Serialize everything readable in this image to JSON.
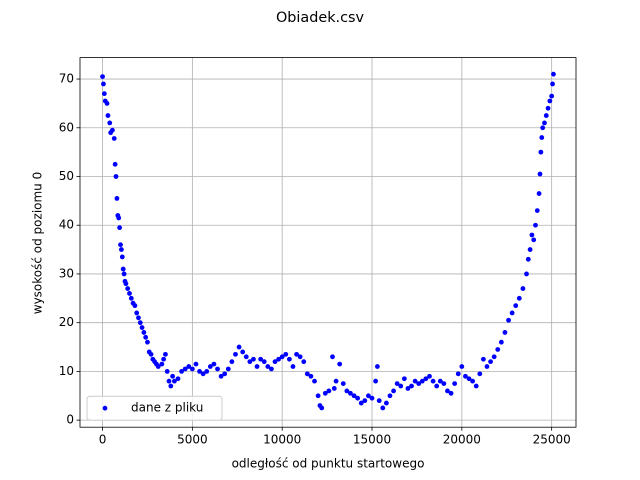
{
  "chart_data": {
    "type": "scatter",
    "title": "Obiadek.csv",
    "xlabel": "odległość od punktu startowego",
    "ylabel": "wysokość od poziomu 0",
    "xlim": [
      -1255,
      26355
    ],
    "ylim": [
      -1.45,
      74.4
    ],
    "xticks": [
      0,
      5000,
      10000,
      15000,
      20000,
      25000
    ],
    "yticks": [
      0,
      10,
      20,
      30,
      40,
      50,
      60,
      70
    ],
    "grid": true,
    "legend": "lower left",
    "series": [
      {
        "name": "dane z pliku",
        "color": "#0000ff",
        "x": [
          0,
          50,
          100,
          150,
          250,
          300,
          400,
          450,
          550,
          650,
          700,
          750,
          800,
          850,
          900,
          950,
          1000,
          1050,
          1100,
          1150,
          1200,
          1250,
          1300,
          1400,
          1500,
          1600,
          1700,
          1800,
          1900,
          2000,
          2100,
          2200,
          2300,
          2400,
          2500,
          2600,
          2700,
          2800,
          2900,
          3000,
          3100,
          3300,
          3400,
          3500,
          3600,
          3700,
          3800,
          3900,
          4000,
          4200,
          4400,
          4600,
          4800,
          5000,
          5200,
          5400,
          5600,
          5800,
          6000,
          6200,
          6400,
          6600,
          6800,
          7000,
          7200,
          7400,
          7600,
          7800,
          8000,
          8200,
          8400,
          8600,
          8800,
          9000,
          9200,
          9400,
          9600,
          9800,
          10000,
          10200,
          10400,
          10600,
          10800,
          11000,
          11200,
          11400,
          11600,
          11800,
          12000,
          12100,
          12200,
          12400,
          12600,
          12800,
          12900,
          13000,
          13200,
          13400,
          13600,
          13800,
          14000,
          14200,
          14400,
          14600,
          14800,
          15000,
          15200,
          15300,
          15400,
          15600,
          15800,
          16000,
          16200,
          16400,
          16600,
          16800,
          17000,
          17200,
          17400,
          17600,
          17800,
          18000,
          18200,
          18400,
          18600,
          18800,
          19000,
          19200,
          19400,
          19600,
          19800,
          20000,
          20200,
          20400,
          20600,
          20800,
          21000,
          21200,
          21400,
          21600,
          21800,
          22000,
          22200,
          22400,
          22600,
          22800,
          23000,
          23200,
          23400,
          23600,
          23700,
          23800,
          23900,
          24000,
          24100,
          24200,
          24300,
          24350,
          24400,
          24450,
          24500,
          24600,
          24700,
          24800,
          24900,
          25000,
          25050,
          25100
        ],
        "values": [
          70.5,
          69,
          67,
          65.5,
          65,
          62.5,
          61,
          59,
          59.5,
          57.8,
          52.5,
          50,
          45.5,
          42,
          41.5,
          39.5,
          36,
          35,
          33.5,
          31,
          30,
          28.5,
          28,
          27,
          26,
          25,
          24,
          23.5,
          22,
          21,
          20,
          19,
          18,
          17,
          16,
          14,
          13.5,
          12.5,
          12,
          11.5,
          11,
          11.5,
          12.5,
          13.5,
          10,
          8,
          7,
          9,
          8,
          8.5,
          10,
          10.5,
          11,
          10.5,
          11.5,
          10,
          9.5,
          10,
          11,
          11.5,
          10.5,
          9,
          9.5,
          10.5,
          12,
          13.5,
          15,
          14,
          13,
          12,
          12.5,
          11,
          12.5,
          12,
          11,
          10.5,
          12,
          12.5,
          13,
          13.5,
          12.5,
          11,
          13.5,
          13,
          12,
          9.5,
          9,
          8,
          5,
          3,
          2.5,
          5.5,
          6,
          13,
          6.5,
          8,
          11.5,
          7.5,
          6,
          5.5,
          5,
          4.5,
          3.5,
          4,
          5,
          4.5,
          8,
          11,
          4,
          2.5,
          3.5,
          5,
          6,
          7.5,
          7,
          8.5,
          6.5,
          7,
          8,
          7.5,
          8,
          8.5,
          9,
          8,
          7,
          8,
          7.5,
          6,
          5.5,
          7.5,
          9.5,
          11,
          9,
          8.5,
          8,
          7,
          9.5,
          12.5,
          11,
          12,
          13,
          14.5,
          16,
          18,
          20.5,
          22,
          23.5,
          25,
          27,
          30,
          33,
          35,
          38,
          37,
          40,
          43,
          46.5,
          50.5,
          55,
          58,
          60,
          61,
          62.5,
          64,
          65.5,
          66.5,
          69,
          71
        ]
      }
    ]
  }
}
